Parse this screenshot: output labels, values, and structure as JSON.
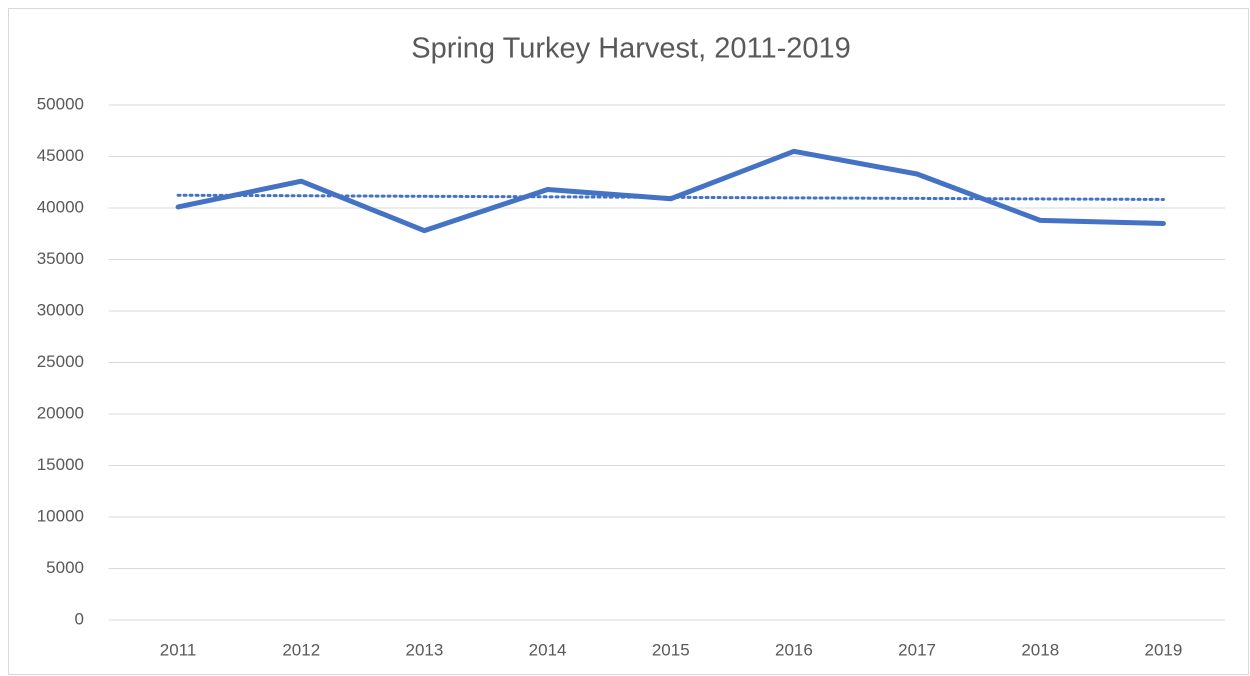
{
  "chart_data": {
    "type": "line",
    "title": "Spring Turkey Harvest, 2011-2019",
    "categories": [
      "2011",
      "2012",
      "2013",
      "2014",
      "2015",
      "2016",
      "2017",
      "2018",
      "2019"
    ],
    "series": [
      {
        "color": "#4472c4",
        "values": [
          40100,
          42600,
          37800,
          41800,
          40900,
          45500,
          43300,
          38800,
          38500
        ]
      }
    ],
    "trendline": {
      "type": "linear",
      "style": "dotted",
      "color": "#4472c4",
      "values": [
        41240,
        40830
      ]
    },
    "ylim": [
      0,
      50000
    ],
    "yticks": [
      0,
      5000,
      10000,
      15000,
      20000,
      25000,
      30000,
      35000,
      40000,
      45000,
      50000
    ],
    "grid": true
  }
}
